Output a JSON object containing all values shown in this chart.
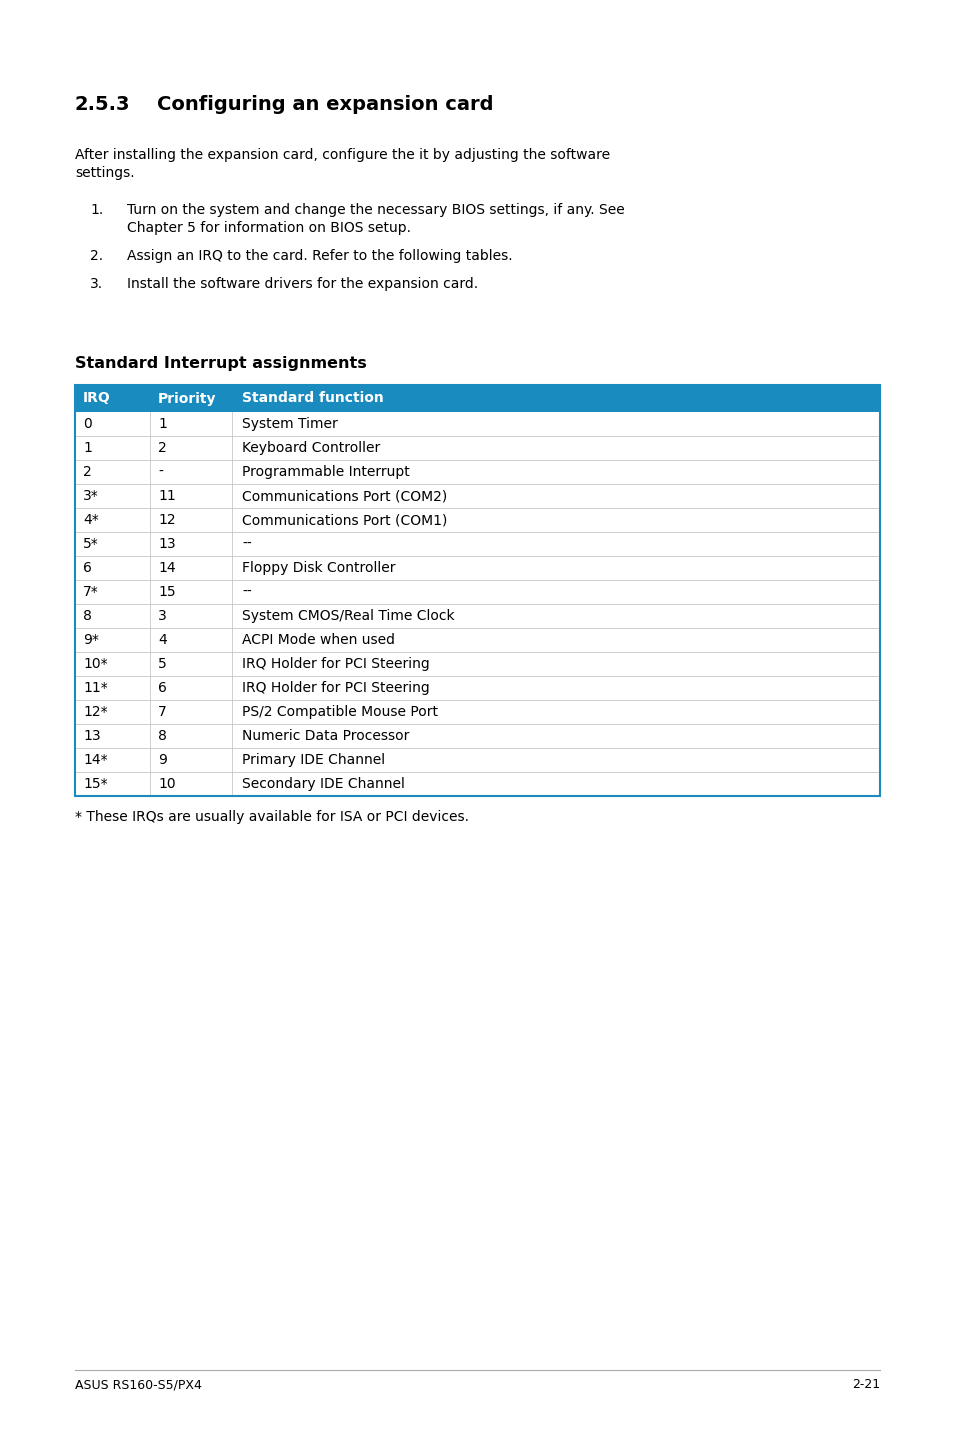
{
  "page_bg": "#ffffff",
  "section_num": "2.5.3",
  "section_title": "Configuring an expansion card",
  "intro_line1": "After installing the expansion card, configure the it by adjusting the software",
  "intro_line2": "settings.",
  "list_items": [
    [
      "Turn on the system and change the necessary BIOS settings, if any. See",
      "Chapter 5 for information on BIOS setup."
    ],
    [
      "Assign an IRQ to the card. Refer to the following tables."
    ],
    [
      "Install the software drivers for the expansion card."
    ]
  ],
  "table_title": "Standard Interrupt assignments",
  "table_header": [
    "IRQ",
    "Priority",
    "Standard function"
  ],
  "table_header_bg": "#1a8bbf",
  "table_header_color": "#ffffff",
  "table_border_color": "#1a8bbf",
  "table_divider_color": "#c8c8c8",
  "table_vert_div_color": "#c8c8c8",
  "table_rows": [
    [
      "0",
      "1",
      "System Timer"
    ],
    [
      "1",
      "2",
      "Keyboard Controller"
    ],
    [
      "2",
      "-",
      "Programmable Interrupt"
    ],
    [
      "3*",
      "11",
      "Communications Port (COM2)"
    ],
    [
      "4*",
      "12",
      "Communications Port (COM1)"
    ],
    [
      "5*",
      "13",
      "--"
    ],
    [
      "6",
      "14",
      "Floppy Disk Controller"
    ],
    [
      "7*",
      "15",
      "--"
    ],
    [
      "8",
      "3",
      "System CMOS/Real Time Clock"
    ],
    [
      "9*",
      "4",
      "ACPI Mode when used"
    ],
    [
      "10*",
      "5",
      "IRQ Holder for PCI Steering"
    ],
    [
      "11*",
      "6",
      "IRQ Holder for PCI Steering"
    ],
    [
      "12*",
      "7",
      "PS/2 Compatible Mouse Port"
    ],
    [
      "13",
      "8",
      "Numeric Data Processor"
    ],
    [
      "14*",
      "9",
      "Primary IDE Channel"
    ],
    [
      "15*",
      "10",
      "Secondary IDE Channel"
    ]
  ],
  "footnote": "* These IRQs are usually available for ISA or PCI devices.",
  "footer_left": "ASUS RS160-S5/PX4",
  "footer_right": "2-21"
}
